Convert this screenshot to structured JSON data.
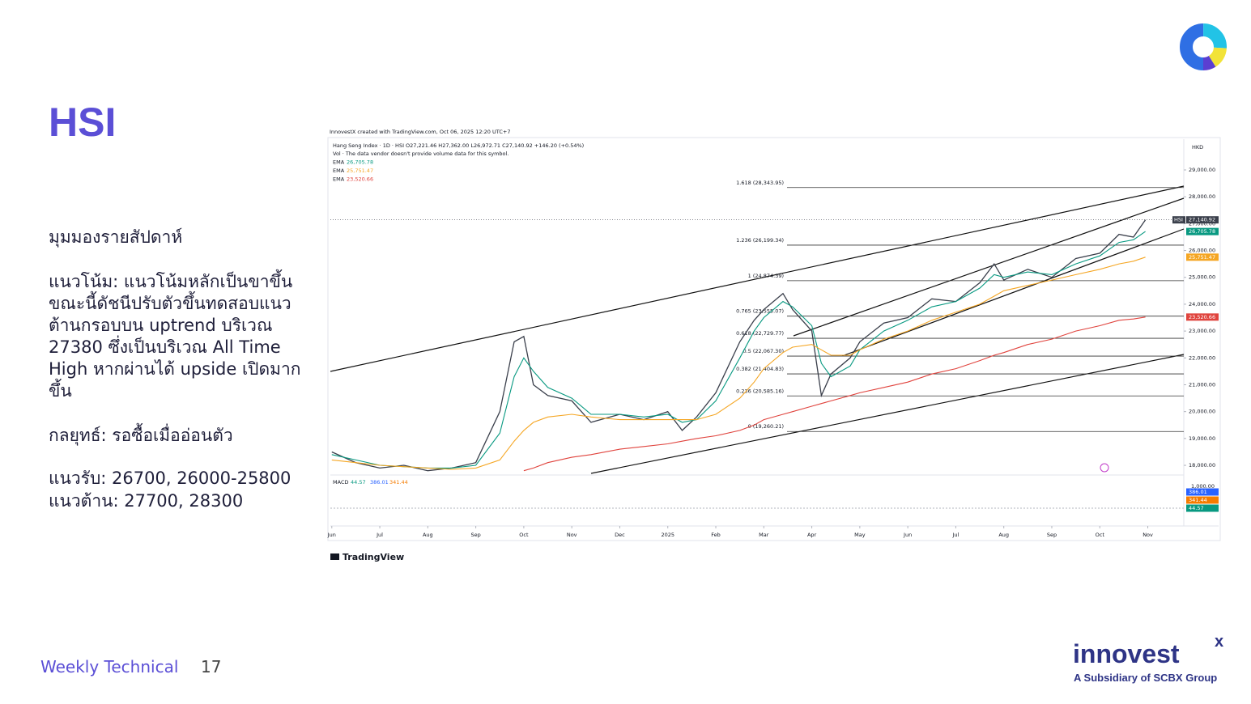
{
  "header": {
    "title": "HSI"
  },
  "body": {
    "heading": "มุมมองรายสัปดาห์",
    "trend": "แนวโน้ม: แนวโน้มหลักเป็นขาขึ้น ขณะนี้ดัชนีปรับตัวขึ้นทดสอบแนวต้านกรอบบน uptrend บริเวณ 27380 ซึ่งเป็นบริเวณ All Time High หากผ่านได้ upside เปิดมากขึ้น",
    "strategy": "กลยุทธ์: รอซื้อเมื่ออ่อนตัว",
    "support": "แนวรับ: 26700, 26000-25800",
    "resistance": "แนวต้าน: 27700, 28300"
  },
  "footer": {
    "label": "Weekly Technical",
    "page": "17",
    "brand": "innovest",
    "brand_mark": "x",
    "tagline": "A Subsidiary of SCBX Group"
  },
  "chart_data": {
    "type": "line",
    "credit": "InnovestX created with TradingView.com, Oct 06, 2025 12:20 UTC+7",
    "title": "Hang Seng Index · 1D · HSI   O27,221.46  H27,362.00  L26,972.71  C27,140.92  +146.20 (+0.54%)",
    "subtitle": "Vol · The data vendor doesn't provide volume data for this symbol.",
    "currency": "HKD",
    "brand": "TradingView",
    "x": [
      0,
      0.5,
      1,
      1.5,
      2,
      2.5,
      3,
      3.5,
      3.8,
      4,
      4.2,
      4.5,
      5,
      5.4,
      6,
      6.5,
      7,
      7.3,
      7.6,
      8,
      8.5,
      8.8,
      9,
      9.4,
      9.6,
      10,
      10.2,
      10.4,
      10.8,
      11,
      11.5,
      12,
      12.5,
      13,
      13.5,
      13.8,
      14,
      14.5,
      15,
      15.5,
      16,
      16.4,
      16.7,
      16.95
    ],
    "series": [
      {
        "name": "HSI",
        "color": "#3a3f4b",
        "tag": "27,140.92",
        "values": [
          18500,
          18100,
          17900,
          18000,
          17800,
          17900,
          18100,
          20000,
          22600,
          22800,
          21000,
          20600,
          20400,
          19600,
          19900,
          19700,
          20000,
          19300,
          19800,
          20700,
          22600,
          23400,
          23800,
          24400,
          23800,
          23000,
          20600,
          21400,
          22000,
          22600,
          23300,
          23500,
          24200,
          24100,
          24800,
          25500,
          24900,
          25300,
          25000,
          25700,
          25900,
          26600,
          26500,
          27140.92
        ]
      },
      {
        "name": "EMA",
        "color": "#089981",
        "tag": "26,705.78",
        "values": [
          18400,
          18200,
          18000,
          17950,
          17900,
          17900,
          18000,
          19200,
          21300,
          22000,
          21500,
          20900,
          20500,
          19900,
          19900,
          19800,
          19900,
          19600,
          19700,
          20400,
          22000,
          23000,
          23500,
          24100,
          23900,
          23200,
          21800,
          21300,
          21700,
          22300,
          23000,
          23400,
          23900,
          24100,
          24600,
          25100,
          25000,
          25200,
          25100,
          25500,
          25800,
          26300,
          26400,
          26705.78
        ]
      },
      {
        "name": "EMA",
        "color": "#f5a623",
        "tag": "25,751.47",
        "values": [
          18200,
          18100,
          18000,
          17950,
          17900,
          17850,
          17900,
          18200,
          18900,
          19300,
          19600,
          19800,
          19900,
          19800,
          19700,
          19700,
          19700,
          19700,
          19700,
          19900,
          20500,
          21100,
          21600,
          22200,
          22400,
          22500,
          22300,
          22100,
          22100,
          22300,
          22700,
          23000,
          23400,
          23700,
          24000,
          24300,
          24500,
          24700,
          24900,
          25100,
          25300,
          25500,
          25600,
          25751.47
        ]
      },
      {
        "name": "EMA",
        "color": "#e0433d",
        "tag": "23,520.66",
        "values": [
          null,
          null,
          null,
          null,
          null,
          null,
          null,
          null,
          null,
          17800,
          17900,
          18100,
          18300,
          18400,
          18600,
          18700,
          18800,
          18900,
          19000,
          19100,
          19300,
          19500,
          19700,
          19900,
          20000,
          20200,
          20300,
          20400,
          20600,
          20700,
          20900,
          21100,
          21400,
          21600,
          21900,
          22100,
          22200,
          22500,
          22700,
          23000,
          23200,
          23400,
          23450,
          23520.66
        ]
      }
    ],
    "fib_levels": [
      {
        "value": 28343.95,
        "label": "1.618 (28,343.95)"
      },
      {
        "value": 26199.34,
        "label": "1.236 (26,199.34)"
      },
      {
        "value": 24874.39,
        "label": "1 (24,874.39)"
      },
      {
        "value": 23555.07,
        "label": "0.765 (23,555.07)"
      },
      {
        "value": 22729.77,
        "label": "0.618 (22,729.77)"
      },
      {
        "value": 22067.3,
        "label": "0.5 (22,067.30)"
      },
      {
        "value": 21404.83,
        "label": "0.382 (21,404.83)"
      },
      {
        "value": 20585.16,
        "label": "0.236 (20,585.16)"
      },
      {
        "value": 19260.21,
        "label": "0 (19,260.21)"
      }
    ],
    "xlim": [
      -0.03,
      17.75
    ],
    "xticks": [
      {
        "value": 0,
        "label": "Jun"
      },
      {
        "value": 1,
        "label": "Jul"
      },
      {
        "value": 2,
        "label": "Aug"
      },
      {
        "value": 3,
        "label": "Sep"
      },
      {
        "value": 4,
        "label": "Oct"
      },
      {
        "value": 5,
        "label": "Nov"
      },
      {
        "value": 6,
        "label": "Dec"
      },
      {
        "value": 7,
        "label": "2025"
      },
      {
        "value": 8,
        "label": "Feb"
      },
      {
        "value": 9,
        "label": "Mar"
      },
      {
        "value": 10,
        "label": "Apr"
      },
      {
        "value": 11,
        "label": "May"
      },
      {
        "value": 12,
        "label": "Jun"
      },
      {
        "value": 13,
        "label": "Jul"
      },
      {
        "value": 14,
        "label": "Aug"
      },
      {
        "value": 15,
        "label": "Sep"
      },
      {
        "value": 16,
        "label": "Oct"
      },
      {
        "value": 17,
        "label": "Nov"
      }
    ],
    "ylim": [
      17700,
      30145
    ],
    "yticks": [
      {
        "value": 18000,
        "label": "18,000.00"
      },
      {
        "value": 19000,
        "label": "19,000.00"
      },
      {
        "value": 20000,
        "label": "20,000.00"
      },
      {
        "value": 21000,
        "label": "21,000.00"
      },
      {
        "value": 22000,
        "label": "22,000.00"
      },
      {
        "value": 23000,
        "label": "23,000.00"
      },
      {
        "value": 24000,
        "label": "24,000.00"
      },
      {
        "value": 25000,
        "label": "25,000.00"
      },
      {
        "value": 26000,
        "label": "26,000.00"
      },
      {
        "value": 27000,
        "label": "27,000.00"
      },
      {
        "value": 28000,
        "label": "28,000.00"
      },
      {
        "value": 29000,
        "label": "29,000.00"
      }
    ],
    "grid": false,
    "macd": {
      "name": "MACD",
      "labels": [
        "44.57",
        "386.01",
        "341.44"
      ],
      "colors": [
        "#089981",
        "#2962ff",
        "#f57c00"
      ],
      "tick": "1,000.00"
    }
  }
}
